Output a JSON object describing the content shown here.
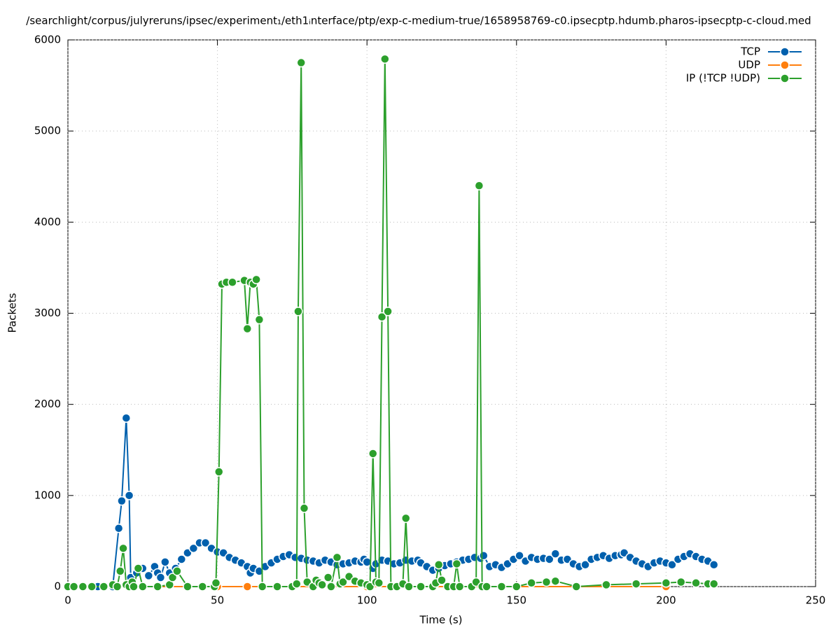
{
  "chart_data": {
    "type": "line",
    "title": "/searchlight/corpus/julyreruns/ipsec/experiment₁/eth1ᵢnterface/ptp/exp-c-medium-true/1658958769-c0.ipsecptp.hdumb.pharos-ipsecptp-c-cloud.med",
    "xlabel": "Time (s)",
    "ylabel": "Packets",
    "xlim": [
      0,
      250
    ],
    "xticks": [
      0,
      50,
      100,
      150,
      200,
      250
    ],
    "ylim": [
      0,
      6000
    ],
    "yticks": [
      0,
      1000,
      2000,
      3000,
      4000,
      5000,
      6000
    ],
    "grid": true,
    "legend": "top-right",
    "series": [
      {
        "name": "TCP",
        "color": "#0060ad",
        "x": [
          0,
          5,
          10,
          15,
          17,
          18,
          19.5,
          20.5,
          21,
          23,
          25,
          27,
          29,
          30,
          31,
          32.5,
          34,
          36,
          38,
          40,
          42,
          44,
          46,
          48,
          50,
          52,
          54,
          56,
          58,
          60,
          61,
          62,
          64,
          66,
          68,
          70,
          72,
          74,
          76,
          78,
          80,
          82,
          84,
          86,
          88,
          90,
          92,
          94,
          96,
          98,
          99,
          100,
          102,
          103,
          105,
          107,
          109,
          111,
          113,
          115,
          117,
          118,
          120,
          122,
          124,
          126,
          128,
          130,
          132,
          134,
          136,
          138,
          139,
          141,
          143,
          145,
          147,
          149,
          151,
          153,
          155,
          157,
          159,
          161,
          163,
          165,
          167,
          169,
          171,
          173,
          175,
          177,
          179,
          181,
          183,
          185,
          186,
          188,
          190,
          192,
          194,
          196,
          198,
          200,
          202,
          204,
          206,
          208,
          210,
          212,
          214,
          216
        ],
        "values": [
          0,
          0,
          0,
          0,
          640,
          940,
          1850,
          1000,
          100,
          150,
          200,
          120,
          220,
          150,
          100,
          270,
          150,
          200,
          300,
          370,
          420,
          480,
          480,
          420,
          380,
          370,
          320,
          290,
          260,
          220,
          150,
          200,
          170,
          220,
          260,
          300,
          330,
          350,
          320,
          310,
          290,
          280,
          260,
          290,
          270,
          240,
          250,
          260,
          280,
          270,
          300,
          270,
          200,
          250,
          290,
          280,
          250,
          260,
          290,
          280,
          290,
          260,
          220,
          180,
          200,
          230,
          250,
          270,
          290,
          300,
          320,
          310,
          340,
          220,
          240,
          210,
          250,
          300,
          340,
          280,
          320,
          300,
          310,
          300,
          360,
          290,
          300,
          250,
          220,
          240,
          300,
          320,
          340,
          310,
          340,
          350,
          370,
          320,
          280,
          250,
          220,
          260,
          280,
          260,
          240,
          300,
          330,
          360,
          330,
          300,
          280,
          240
        ]
      },
      {
        "name": "UDP",
        "color": "#ff7f0e",
        "x": [
          0,
          50,
          60,
          100,
          150,
          200
        ],
        "values": [
          0,
          0,
          0,
          0,
          0,
          0
        ]
      },
      {
        "name": "IP (!TCP  !UDP)",
        "color": "#2ca02c",
        "x": [
          0,
          2,
          5,
          8,
          12,
          15,
          16.5,
          17.5,
          18.5,
          19.5,
          20.5,
          21.5,
          22,
          23.5,
          25,
          30,
          34,
          35,
          36.5,
          40,
          45,
          49,
          49.5,
          50.5,
          51.5,
          53,
          55,
          59,
          60,
          61,
          62,
          63,
          64,
          65,
          70,
          75,
          76.5,
          77,
          78,
          79,
          80,
          82,
          83,
          84,
          85,
          87,
          88,
          90,
          91,
          92,
          94,
          96,
          98,
          100,
          101,
          102,
          103,
          104,
          105,
          106,
          107,
          108,
          110,
          112,
          113,
          114,
          118,
          122,
          123,
          124,
          125,
          127,
          129,
          130,
          131,
          135,
          136.5,
          137.5,
          138.5,
          140,
          145,
          150,
          155,
          160,
          163,
          170,
          180,
          190,
          200,
          205,
          210,
          214,
          216
        ],
        "values": [
          0,
          0,
          0,
          0,
          0,
          20,
          0,
          170,
          420,
          20,
          0,
          50,
          0,
          200,
          0,
          0,
          20,
          100,
          170,
          0,
          0,
          0,
          40,
          1260,
          3320,
          3340,
          3340,
          3360,
          2830,
          3340,
          3320,
          3370,
          2930,
          0,
          0,
          0,
          30,
          3020,
          5750,
          860,
          50,
          0,
          70,
          40,
          20,
          100,
          0,
          320,
          30,
          50,
          110,
          60,
          40,
          20,
          0,
          1460,
          50,
          40,
          2960,
          5790,
          3020,
          0,
          0,
          30,
          750,
          0,
          0,
          0,
          40,
          240,
          70,
          0,
          0,
          250,
          0,
          0,
          50,
          4400,
          0,
          0,
          0,
          0,
          40,
          50,
          60,
          0,
          20,
          30,
          40,
          50,
          40,
          30,
          30
        ]
      }
    ]
  }
}
